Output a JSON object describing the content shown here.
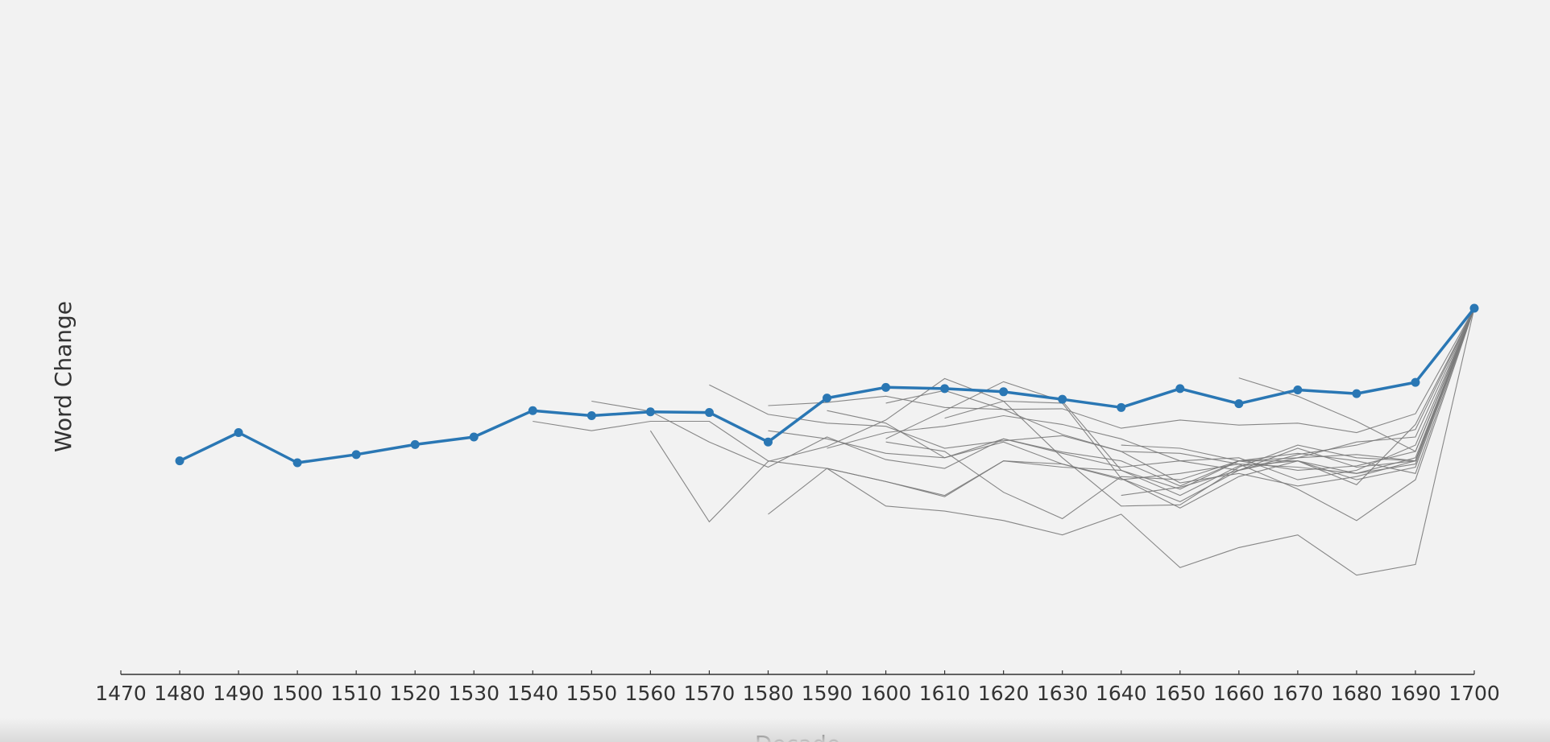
{
  "chart_data": {
    "type": "line",
    "ylabel": "Word Change",
    "xlabel": "Decade",
    "xlim": [
      1470,
      1700
    ],
    "ylim": [
      -3.4,
      5.8
    ],
    "x_ticks": [
      1470,
      1480,
      1490,
      1500,
      1510,
      1520,
      1530,
      1540,
      1550,
      1560,
      1570,
      1580,
      1590,
      1600,
      1610,
      1620,
      1630,
      1640,
      1650,
      1660,
      1670,
      1680,
      1690,
      1700
    ],
    "y_tick_labels_shown": false,
    "grid": false,
    "legend": "none",
    "colors": {
      "highlight": "#2a77b4",
      "background_series": "#7a7a7a",
      "background": "#f2f2f2",
      "axis": "#333333"
    },
    "series": [
      {
        "highlight": true,
        "markers": true,
        "points": [
          [
            1480,
            0.0
          ],
          [
            1490,
            0.45
          ],
          [
            1500,
            -0.03
          ],
          [
            1510,
            0.1
          ],
          [
            1520,
            0.26
          ],
          [
            1530,
            0.38
          ],
          [
            1540,
            0.8
          ],
          [
            1550,
            0.72
          ],
          [
            1560,
            0.78
          ],
          [
            1570,
            0.77
          ],
          [
            1580,
            0.3
          ],
          [
            1590,
            1.0
          ],
          [
            1600,
            1.17
          ],
          [
            1610,
            1.15
          ],
          [
            1620,
            1.1
          ],
          [
            1630,
            0.98
          ],
          [
            1640,
            0.85
          ],
          [
            1650,
            1.15
          ],
          [
            1660,
            0.91
          ],
          [
            1670,
            1.13
          ],
          [
            1680,
            1.07
          ],
          [
            1690,
            1.25
          ],
          [
            1700,
            2.43
          ]
        ]
      },
      {
        "points": [
          [
            1540,
            0.63
          ],
          [
            1550,
            0.48
          ],
          [
            1560,
            0.63
          ],
          [
            1570,
            0.63
          ],
          [
            1580,
            0.0
          ],
          [
            1590,
            -0.12
          ],
          [
            1600,
            -0.33
          ],
          [
            1610,
            -0.55
          ],
          [
            1620,
            0.0
          ],
          [
            1630,
            -0.1
          ],
          [
            1640,
            -0.15
          ],
          [
            1650,
            -0.55
          ],
          [
            1660,
            -0.08
          ],
          [
            1670,
            0.0
          ],
          [
            1680,
            -0.38
          ],
          [
            1690,
            0.58
          ],
          [
            1700,
            2.43
          ]
        ]
      },
      {
        "points": [
          [
            1550,
            0.95
          ],
          [
            1560,
            0.79
          ],
          [
            1570,
            0.3
          ],
          [
            1580,
            -0.1
          ],
          [
            1590,
            0.38
          ],
          [
            1600,
            0.02
          ],
          [
            1610,
            -0.12
          ],
          [
            1620,
            0.35
          ],
          [
            1630,
            0.14
          ],
          [
            1640,
            0.0
          ],
          [
            1650,
            -0.4
          ],
          [
            1660,
            0.0
          ],
          [
            1670,
            -0.15
          ],
          [
            1680,
            -0.08
          ],
          [
            1690,
            0.15
          ],
          [
            1700,
            2.43
          ]
        ]
      },
      {
        "points": [
          [
            1560,
            0.48
          ],
          [
            1570,
            -0.97
          ],
          [
            1580,
            -0.01
          ],
          [
            1590,
            0.23
          ],
          [
            1600,
            0.65
          ],
          [
            1610,
            1.31
          ],
          [
            1620,
            0.95
          ],
          [
            1630,
            0.05
          ],
          [
            1640,
            -0.72
          ],
          [
            1650,
            -0.7
          ],
          [
            1660,
            -0.1
          ],
          [
            1670,
            0.25
          ],
          [
            1680,
            0.05
          ],
          [
            1690,
            0.0
          ],
          [
            1700,
            2.43
          ]
        ]
      },
      {
        "points": [
          [
            1570,
            1.21
          ],
          [
            1580,
            0.74
          ],
          [
            1590,
            0.6
          ],
          [
            1600,
            0.55
          ],
          [
            1610,
            0.2
          ],
          [
            1620,
            0.32
          ],
          [
            1630,
            0.4
          ],
          [
            1640,
            0.15
          ],
          [
            1650,
            -0.35
          ],
          [
            1660,
            -0.2
          ],
          [
            1670,
            -0.4
          ],
          [
            1680,
            -0.25
          ],
          [
            1690,
            0.0
          ],
          [
            1700,
            2.43
          ]
        ]
      },
      {
        "points": [
          [
            1580,
            0.88
          ],
          [
            1590,
            0.93
          ],
          [
            1600,
            1.03
          ],
          [
            1610,
            0.85
          ],
          [
            1620,
            0.82
          ],
          [
            1630,
            0.83
          ],
          [
            1640,
            0.52
          ],
          [
            1650,
            0.65
          ],
          [
            1660,
            0.57
          ],
          [
            1670,
            0.6
          ],
          [
            1680,
            0.45
          ],
          [
            1690,
            0.75
          ],
          [
            1700,
            2.43
          ]
        ]
      },
      {
        "points": [
          [
            1580,
            0.48
          ],
          [
            1590,
            0.35
          ],
          [
            1600,
            0.12
          ],
          [
            1610,
            0.05
          ],
          [
            1620,
            0.3
          ],
          [
            1630,
            -0.05
          ],
          [
            1640,
            -0.3
          ],
          [
            1650,
            -0.2
          ],
          [
            1660,
            -0.05
          ],
          [
            1670,
            -0.1
          ],
          [
            1680,
            -0.2
          ],
          [
            1690,
            -0.05
          ],
          [
            1700,
            2.43
          ]
        ]
      },
      {
        "points": [
          [
            1580,
            -0.85
          ],
          [
            1590,
            -0.12
          ],
          [
            1600,
            -0.33
          ],
          [
            1610,
            -0.57
          ],
          [
            1620,
            0.0
          ],
          [
            1630,
            -0.05
          ],
          [
            1640,
            -0.28
          ],
          [
            1650,
            -0.65
          ],
          [
            1660,
            -0.15
          ],
          [
            1670,
            0.2
          ],
          [
            1680,
            -0.1
          ],
          [
            1690,
            0.0
          ],
          [
            1700,
            2.43
          ]
        ]
      },
      {
        "points": [
          [
            1590,
            0.8
          ],
          [
            1600,
            0.6
          ],
          [
            1610,
            0.05
          ],
          [
            1620,
            0.35
          ],
          [
            1630,
            0.12
          ],
          [
            1640,
            -0.1
          ],
          [
            1650,
            0.0
          ],
          [
            1660,
            0.05
          ],
          [
            1670,
            -0.3
          ],
          [
            1680,
            -0.15
          ],
          [
            1690,
            0.25
          ],
          [
            1700,
            2.43
          ]
        ]
      },
      {
        "points": [
          [
            1590,
            0.2
          ],
          [
            1600,
            0.45
          ],
          [
            1610,
            0.55
          ],
          [
            1620,
            0.72
          ],
          [
            1630,
            0.58
          ],
          [
            1640,
            0.35
          ],
          [
            1650,
            0.0
          ],
          [
            1660,
            -0.15
          ],
          [
            1670,
            0.1
          ],
          [
            1680,
            0.25
          ],
          [
            1690,
            0.5
          ],
          [
            1700,
            2.43
          ]
        ]
      },
      {
        "points": [
          [
            1590,
            -0.12
          ],
          [
            1600,
            -0.72
          ],
          [
            1610,
            -0.8
          ],
          [
            1620,
            -0.95
          ],
          [
            1630,
            -1.18
          ],
          [
            1640,
            -0.85
          ],
          [
            1650,
            -1.7
          ],
          [
            1660,
            -1.38
          ],
          [
            1670,
            -1.18
          ],
          [
            1680,
            -1.82
          ],
          [
            1690,
            -1.65
          ],
          [
            1700,
            2.43
          ]
        ]
      },
      {
        "points": [
          [
            1600,
            0.92
          ],
          [
            1610,
            1.12
          ],
          [
            1620,
            0.82
          ],
          [
            1630,
            0.42
          ],
          [
            1640,
            0.15
          ],
          [
            1650,
            0.12
          ],
          [
            1660,
            -0.05
          ],
          [
            1670,
            -0.45
          ],
          [
            1680,
            -0.95
          ],
          [
            1690,
            -0.3
          ],
          [
            1700,
            2.43
          ]
        ]
      },
      {
        "points": [
          [
            1600,
            0.35
          ],
          [
            1610,
            0.8
          ],
          [
            1620,
            1.26
          ],
          [
            1630,
            0.95
          ],
          [
            1640,
            -0.15
          ],
          [
            1650,
            -0.45
          ],
          [
            1660,
            0.0
          ],
          [
            1670,
            0.0
          ],
          [
            1680,
            -0.2
          ],
          [
            1690,
            0.05
          ],
          [
            1700,
            2.43
          ]
        ]
      },
      {
        "points": [
          [
            1610,
            0.68
          ],
          [
            1620,
            0.95
          ],
          [
            1630,
            0.92
          ],
          [
            1640,
            -0.28
          ],
          [
            1650,
            -0.75
          ],
          [
            1660,
            -0.25
          ],
          [
            1670,
            0.0
          ],
          [
            1680,
            -0.3
          ],
          [
            1690,
            -0.1
          ],
          [
            1700,
            2.43
          ]
        ]
      },
      {
        "points": [
          [
            1600,
            0.3
          ],
          [
            1610,
            0.15
          ],
          [
            1620,
            -0.5
          ],
          [
            1630,
            -0.92
          ],
          [
            1640,
            -0.25
          ],
          [
            1650,
            -0.3
          ],
          [
            1660,
            0.0
          ],
          [
            1670,
            0.12
          ],
          [
            1680,
            0.0
          ],
          [
            1690,
            -0.2
          ],
          [
            1700,
            2.43
          ]
        ]
      },
      {
        "points": [
          [
            1640,
            -0.55
          ],
          [
            1650,
            -0.42
          ],
          [
            1660,
            -0.15
          ],
          [
            1670,
            0.05
          ],
          [
            1680,
            0.1
          ],
          [
            1690,
            0.0
          ],
          [
            1700,
            2.43
          ]
        ]
      },
      {
        "points": [
          [
            1660,
            1.32
          ],
          [
            1670,
            1.03
          ],
          [
            1680,
            0.63
          ],
          [
            1690,
            0.15
          ],
          [
            1700,
            2.43
          ]
        ]
      },
      {
        "points": [
          [
            1640,
            0.25
          ],
          [
            1650,
            0.2
          ],
          [
            1660,
            0.0
          ],
          [
            1670,
            0.05
          ],
          [
            1680,
            0.3
          ],
          [
            1690,
            0.38
          ],
          [
            1700,
            2.43
          ]
        ]
      }
    ]
  }
}
